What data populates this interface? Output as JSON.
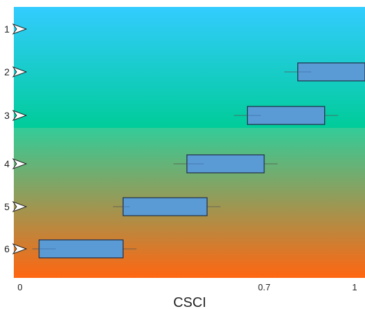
{
  "chart_data": {
    "type": "box",
    "orientation": "horizontal",
    "xlabel": "CSCI",
    "xlim": [
      0,
      1.0
    ],
    "x_ticks": [
      {
        "value": 0,
        "label": "0"
      },
      {
        "value": 0.7,
        "label": "0.7"
      },
      {
        "value": 1.0,
        "label": "1"
      }
    ],
    "categories": [
      "1",
      "2",
      "3",
      "4",
      "5",
      "6"
    ],
    "boxes": [
      {
        "category": "2",
        "whisker_low": 0.76,
        "q1": 0.8,
        "median": 0.84,
        "q3": 1.0,
        "whisker_high": 1.0
      },
      {
        "category": "3",
        "whisker_low": 0.61,
        "q1": 0.65,
        "median": 0.69,
        "q3": 0.88,
        "whisker_high": 0.92
      },
      {
        "category": "4",
        "whisker_low": 0.43,
        "q1": 0.47,
        "median": 0.52,
        "q3": 0.7,
        "whisker_high": 0.74
      },
      {
        "category": "5",
        "whisker_low": 0.25,
        "q1": 0.28,
        "median": 0.3,
        "q3": 0.53,
        "whisker_high": 0.57
      },
      {
        "category": "6",
        "whisker_low": 0.01,
        "q1": 0.03,
        "median": 0.08,
        "q3": 0.28,
        "whisker_high": 0.32
      }
    ],
    "background_gradient": [
      {
        "from": "#33ccff",
        "to": "#00cc99"
      },
      {
        "from": "#33cc99",
        "to": "#ff6611"
      }
    ],
    "box_fill": "#5b9bd5",
    "box_stroke": "#1f2d44",
    "grid": false,
    "legend": "none"
  }
}
